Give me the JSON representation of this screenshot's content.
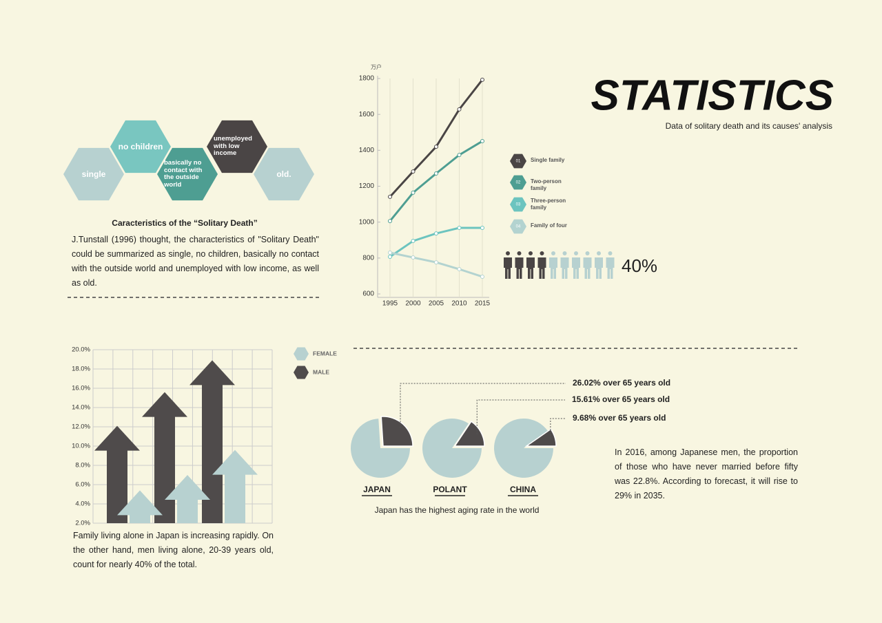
{
  "header": {
    "title": "STATISTICS",
    "subtitle": "Data of solitary death and its causes' analysis"
  },
  "hexagons": [
    "single",
    "no children",
    "basically no contact with the outside world",
    "unemployed with low income",
    "old."
  ],
  "characteristics": {
    "title": "Caracteristics of the “Solitary Death”",
    "text": "J.Tunstall (1996) thought, the characteristics of \"Solitary Death\" could be summarized as single, no children, basically no contact with the outside world and unemployed with low income, as well as old."
  },
  "arrow_caption": "Family living alone in Japan is increasing rapidly. On the other hand, men living alone, 20-39 years old, count for nearly 40% of the total.",
  "pie_note": "In 2016, among Japanese men, the proportion of those who have never married before fifty was 22.8%. According to forecast, it will rise to 29% in 2035.",
  "chart_data": [
    {
      "type": "line",
      "y_unit": "万户",
      "x": [
        1995,
        2000,
        2005,
        2010,
        2015
      ],
      "xlim": [
        1995,
        2015
      ],
      "xticks": [
        1995,
        2000,
        2005,
        2010,
        2015
      ],
      "ylim": [
        600,
        1800
      ],
      "yticks": [
        600,
        800,
        1000,
        1200,
        1400,
        1600,
        1800
      ],
      "grid": true,
      "legend_numbers": [
        "01",
        "02",
        "03",
        "04"
      ],
      "series": [
        {
          "name": "Single family",
          "color": "#4a4545",
          "values": [
            1141,
            1282,
            1420,
            1628,
            1793
          ]
        },
        {
          "name": "Two-person family",
          "color": "#4e9e92",
          "values": [
            1006,
            1164,
            1271,
            1374,
            1451
          ]
        },
        {
          "name": "Three-person family",
          "color": "#6cc4bf",
          "values": [
            807,
            895,
            937,
            968,
            968
          ]
        },
        {
          "name": "Family of four",
          "color": "#b3d3d0",
          "values": [
            830,
            803,
            776,
            738,
            696
          ]
        }
      ]
    },
    {
      "type": "arrow-bar",
      "ylim": [
        2,
        20
      ],
      "grid": true,
      "yticks": [
        {
          "value": 2,
          "label": "2.0%"
        },
        {
          "value": 4,
          "label": "4.0%"
        },
        {
          "value": 6,
          "label": "6.0%"
        },
        {
          "value": 8,
          "label": "8.0%"
        },
        {
          "value": 10,
          "label": "10.0%"
        },
        {
          "value": 12,
          "label": "12.0%"
        },
        {
          "value": 14,
          "label": "14.0%"
        },
        {
          "value": 16,
          "label": "16.0%"
        },
        {
          "value": 18,
          "label": "18.0%"
        },
        {
          "value": 20,
          "label": "20.0%"
        }
      ],
      "series": [
        {
          "name": "FEMALE",
          "color": "#b7d1d0",
          "values": [
            5.4,
            7.0,
            9.6
          ]
        },
        {
          "name": "MALE",
          "color": "#4f4b4b",
          "values": [
            12.1,
            15.6,
            18.9
          ]
        }
      ]
    },
    {
      "type": "pie",
      "categories": [
        "JAPAN",
        "POLANT",
        "CHINA"
      ],
      "values": [
        26.02,
        15.61,
        9.68
      ],
      "value_labels": [
        "26.02% over 65 years old",
        "15.61% over 65 years old",
        "9.68% over 65 years old"
      ],
      "caption": "Japan has the highest aging rate in the world",
      "color": "#b7d1d0",
      "slice_color": "#4f4b4b"
    },
    {
      "type": "pictogram",
      "values": [
        40
      ],
      "value_labels": [
        "40%"
      ],
      "color": "#4a4545",
      "rest_color": "#b7d1d0"
    }
  ]
}
